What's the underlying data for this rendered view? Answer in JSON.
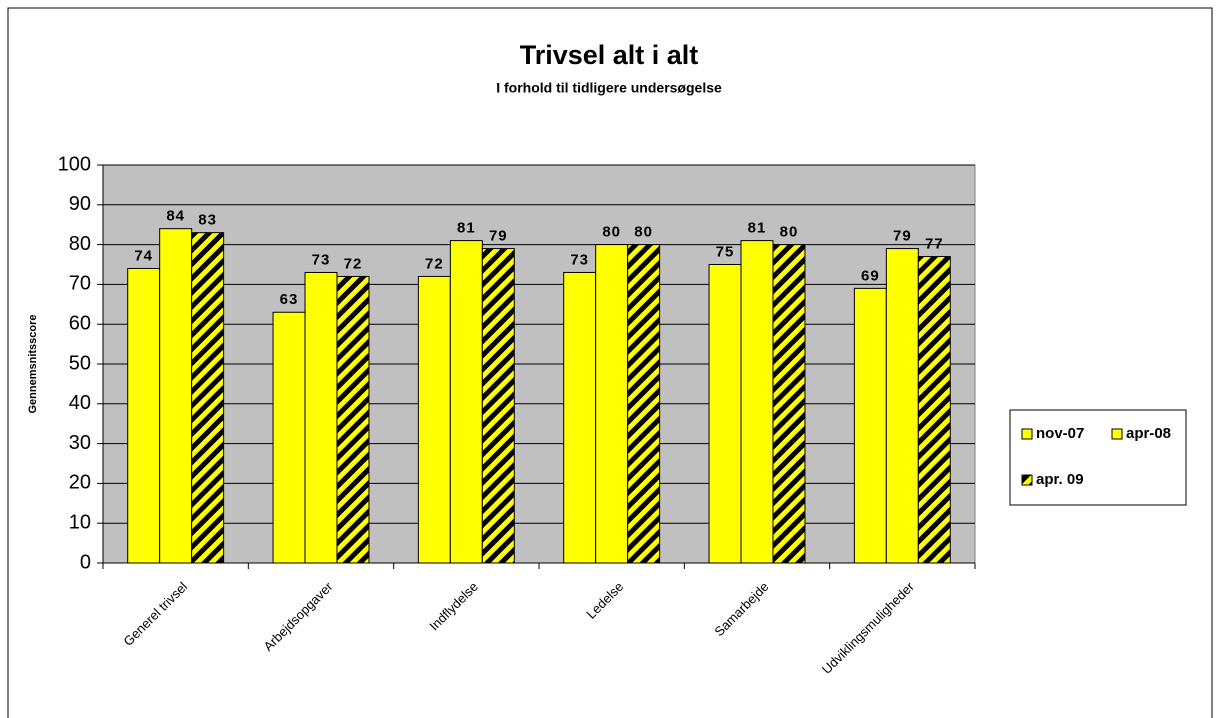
{
  "chart_data": {
    "type": "bar",
    "title": "Trivsel alt i alt",
    "subtitle": "I forhold til tidligere undersøgelse",
    "y_label": "Gennemsnitsscore",
    "categories": [
      "Generel trivsel",
      "Arbejdsopgaver",
      "Indflydelse",
      "Ledelse",
      "Samarbejde",
      "Udviklingsmuligheder"
    ],
    "series": [
      {
        "name": "nov-07",
        "color": "#ffff00",
        "values": [
          74,
          63,
          72,
          73,
          75,
          69
        ]
      },
      {
        "name": "apr-08",
        "color": "#ffff00",
        "values": [
          84,
          73,
          81,
          80,
          81,
          79
        ]
      },
      {
        "name": "apr. 09",
        "color": "#ffff00",
        "pattern": "diagonal-stripes",
        "values": [
          83,
          72,
          79,
          80,
          80,
          77
        ]
      }
    ],
    "ylim": [
      0,
      100
    ],
    "yticks": [
      0,
      10,
      20,
      30,
      40,
      50,
      60,
      70,
      80,
      90,
      100
    ],
    "grid": true,
    "legend": "right",
    "plot_background": "#c0c0c0"
  }
}
